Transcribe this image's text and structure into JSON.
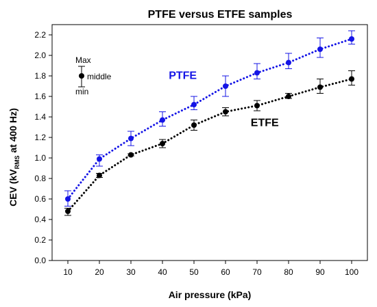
{
  "chart_data": {
    "type": "line",
    "title": "PTFE versus ETFE samples",
    "xlabel": "Air pressure (kPa)",
    "ylabel": {
      "main": "CEV (kV",
      "sub": "RMS",
      "tail": " at 400 Hz)"
    },
    "x": [
      10,
      20,
      30,
      40,
      50,
      60,
      70,
      80,
      90,
      100
    ],
    "xlim": [
      5,
      105
    ],
    "ylim": [
      0.0,
      2.3
    ],
    "yticks": [
      0.0,
      0.2,
      0.4,
      0.6,
      0.8,
      1.0,
      1.2,
      1.4,
      1.6,
      1.8,
      2.0,
      2.2
    ],
    "ytick_labels": [
      "0.0",
      "0.2",
      "0.4",
      "0.6",
      "0.8",
      "1.0",
      "1.2",
      "1.4",
      "1.6",
      "1.8",
      "2.0",
      "2.2"
    ],
    "xtick_labels": [
      "10",
      "20",
      "30",
      "40",
      "50",
      "60",
      "70",
      "80",
      "90",
      "100"
    ],
    "grid": false,
    "series": [
      {
        "name": "PTFE",
        "color": "#1414e6",
        "values": [
          0.6,
          0.99,
          1.19,
          1.37,
          1.52,
          1.7,
          1.83,
          1.93,
          2.06,
          2.16
        ],
        "max": [
          0.68,
          1.03,
          1.26,
          1.45,
          1.6,
          1.8,
          1.92,
          2.02,
          2.17,
          2.24
        ],
        "min": [
          0.53,
          0.92,
          1.12,
          1.31,
          1.47,
          1.6,
          1.77,
          1.87,
          1.98,
          2.11
        ]
      },
      {
        "name": "ETFE",
        "color": "#000000",
        "values": [
          0.48,
          0.83,
          1.03,
          1.14,
          1.32,
          1.45,
          1.51,
          1.6,
          1.69,
          1.77
        ],
        "max": [
          0.51,
          0.85,
          1.04,
          1.18,
          1.37,
          1.49,
          1.56,
          1.63,
          1.77,
          1.85
        ],
        "min": [
          0.44,
          0.81,
          1.02,
          1.1,
          1.27,
          1.41,
          1.46,
          1.58,
          1.63,
          1.71
        ]
      }
    ],
    "key": {
      "max_label": "Max",
      "middle_label": "middle",
      "min_label": "min"
    }
  }
}
